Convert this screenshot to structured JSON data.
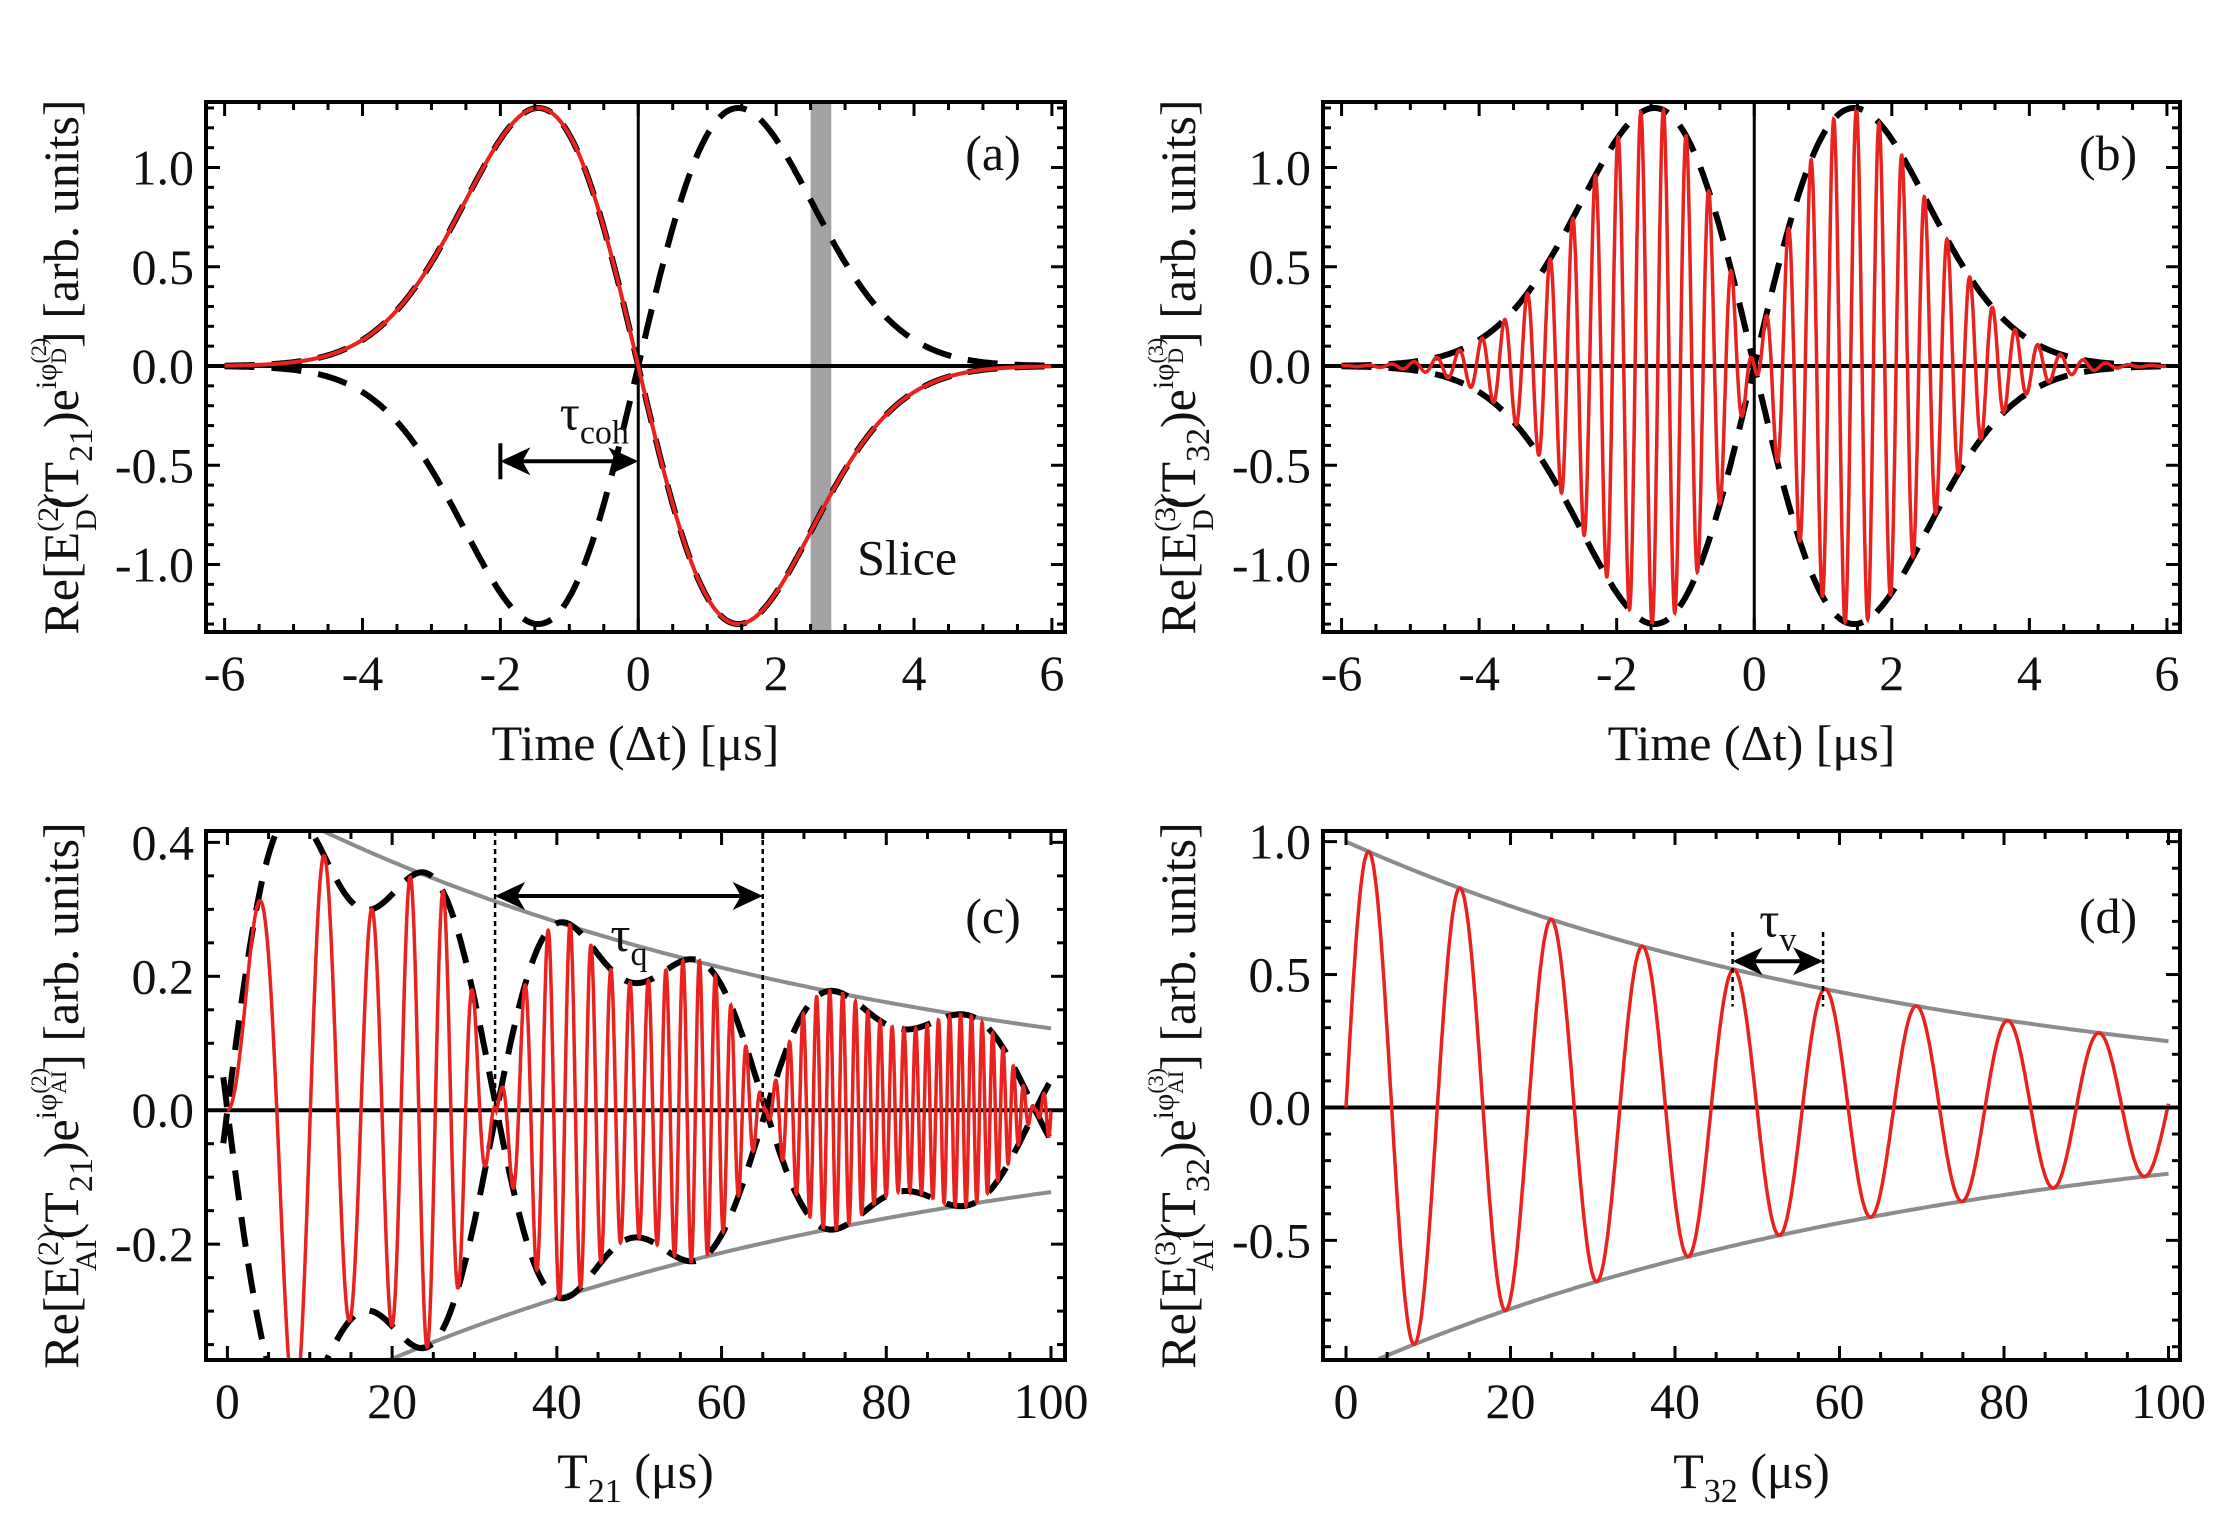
{
  "chart_data": [
    {
      "panel": "(a)",
      "type": "line",
      "xlabel": "Time (Δt)  [μs]",
      "ylabel": {
        "pre": "Re[E",
        "sup": "(2)",
        "sub": "D",
        "mid": "(T",
        "idx": "21",
        "post": ")e",
        "esup": "iφ",
        "esupsup": "(2)",
        "esupsub": "D",
        "end": "]  [arb. units]"
      },
      "xlim": [
        -6.27,
        6.19
      ],
      "ylim": [
        -1.34,
        1.33
      ],
      "xticks": [
        -6,
        -4,
        -2,
        0,
        2,
        4,
        6
      ],
      "xtick_labels": [
        "-6",
        "-4",
        "-2",
        "0",
        "2",
        "4",
        "6"
      ],
      "yticks": [
        -1.0,
        -0.5,
        0.0,
        0.5,
        1.0
      ],
      "ytick_labels": [
        "-1.0",
        "-0.5",
        "0.0",
        "0.5",
        "1.0"
      ],
      "model": {
        "kind": "gaussian-derivative",
        "peak_time": -1.45,
        "peak_value": 1.3
      },
      "series": [
        {
          "name": "signal",
          "color": "#e8221e"
        },
        {
          "name": "envelope",
          "color": "#000000",
          "style": "dashed"
        }
      ],
      "band": {
        "label": "Slice",
        "from": 2.5,
        "to": 2.8,
        "color": "#a3a3a6"
      },
      "annotation": {
        "symbol": "τ",
        "sub": "coh",
        "from": -2,
        "to": 0,
        "y": -0.48
      },
      "tag": "(a)"
    },
    {
      "panel": "(b)",
      "type": "line",
      "xlabel": "Time (Δt)  [μs]",
      "ylabel": {
        "pre": "Re[E",
        "sup": "(3)",
        "sub": "D",
        "mid": "(T",
        "idx": "32",
        "post": ")e",
        "esup": "iφ",
        "esupsup": "(3)",
        "esupsub": "D",
        "end": "]  [arb. units]"
      },
      "xlim": [
        -6.27,
        6.19
      ],
      "ylim": [
        -1.34,
        1.33
      ],
      "xticks": [
        -6,
        -4,
        -2,
        0,
        2,
        4,
        6
      ],
      "xtick_labels": [
        "-6",
        "-4",
        "-2",
        "0",
        "2",
        "4",
        "6"
      ],
      "yticks": [
        -1.0,
        -0.5,
        0.0,
        0.5,
        1.0
      ],
      "ytick_labels": [
        "-1.0",
        "-0.5",
        "0.0",
        "0.5",
        "1.0"
      ],
      "model": {
        "kind": "modulated-gaussian-derivative",
        "peak_time": -1.45,
        "peak_value": 1.3,
        "carrier_period": 0.33
      },
      "series": [
        {
          "name": "signal",
          "color": "#e8221e"
        },
        {
          "name": "envelope",
          "color": "#000000",
          "style": "dashed"
        }
      ],
      "tag": "(b)"
    },
    {
      "panel": "(c)",
      "type": "line",
      "xlabel": "T",
      "xlabel_sub": "21",
      "xlabel_post": " (μs)",
      "ylabel": {
        "pre": "Re[E",
        "sup": "(2)",
        "sub": "AI",
        "mid": "(T",
        "idx": "21",
        "post": ")e",
        "esup": "iφ",
        "esupsup": "(2)",
        "esupsub": "AI",
        "end": "]  [arb. units]"
      },
      "xlim": [
        -2.6,
        101.7
      ],
      "ylim": [
        -0.373,
        0.417
      ],
      "xticks": [
        0,
        20,
        40,
        60,
        80,
        100
      ],
      "xtick_labels": [
        "0",
        "20",
        "40",
        "60",
        "80",
        "100"
      ],
      "yticks": [
        -0.2,
        0.0,
        0.2,
        0.4
      ],
      "ytick_labels": [
        "-0.2",
        "0.0",
        "0.2",
        "0.4"
      ],
      "model": {
        "kind": "quantum-beat",
        "decay_amplitude": 0.49,
        "decay_time": 72,
        "beat_period": 32.7
      },
      "series": [
        {
          "name": "signal",
          "color": "#e8221e"
        },
        {
          "name": "beat envelope",
          "color": "#000000",
          "style": "dashed"
        },
        {
          "name": "decay envelope",
          "color": "#8c8c8c"
        }
      ],
      "annotation": {
        "symbol": "τ",
        "sub": "q",
        "from": 32.5,
        "to": 65,
        "y": 0.32
      },
      "tag": "(c)"
    },
    {
      "panel": "(d)",
      "type": "line",
      "xlabel": "T",
      "xlabel_sub": "32",
      "xlabel_post": " (μs)",
      "ylabel": {
        "pre": "Re[E",
        "sup": "(3)",
        "sub": "AI",
        "mid": "(T",
        "idx": "32",
        "post": ")e",
        "esup": "iφ",
        "esupsup": "(3)",
        "esupsub": "AI",
        "end": "]  [arb. units]"
      },
      "xlim": [
        -2.8,
        101.4
      ],
      "ylim": [
        -0.95,
        1.04
      ],
      "xticks": [
        0,
        20,
        40,
        60,
        80,
        100
      ],
      "xtick_labels": [
        "0",
        "20",
        "40",
        "60",
        "80",
        "100"
      ],
      "yticks": [
        -0.5,
        0.0,
        0.5,
        1.0
      ],
      "ytick_labels": [
        "-0.5",
        "0.0",
        "0.5",
        "1.0"
      ],
      "model": {
        "kind": "damped-sine",
        "amplitude": 1.0,
        "decay_time": 72,
        "period": 11.1
      },
      "series": [
        {
          "name": "signal",
          "color": "#e8221e"
        },
        {
          "name": "decay envelope",
          "color": "#8c8c8c"
        }
      ],
      "annotation": {
        "symbol": "τ",
        "sub": "v",
        "from": 47,
        "to": 58,
        "y": 0.55
      },
      "tag": "(d)"
    }
  ]
}
